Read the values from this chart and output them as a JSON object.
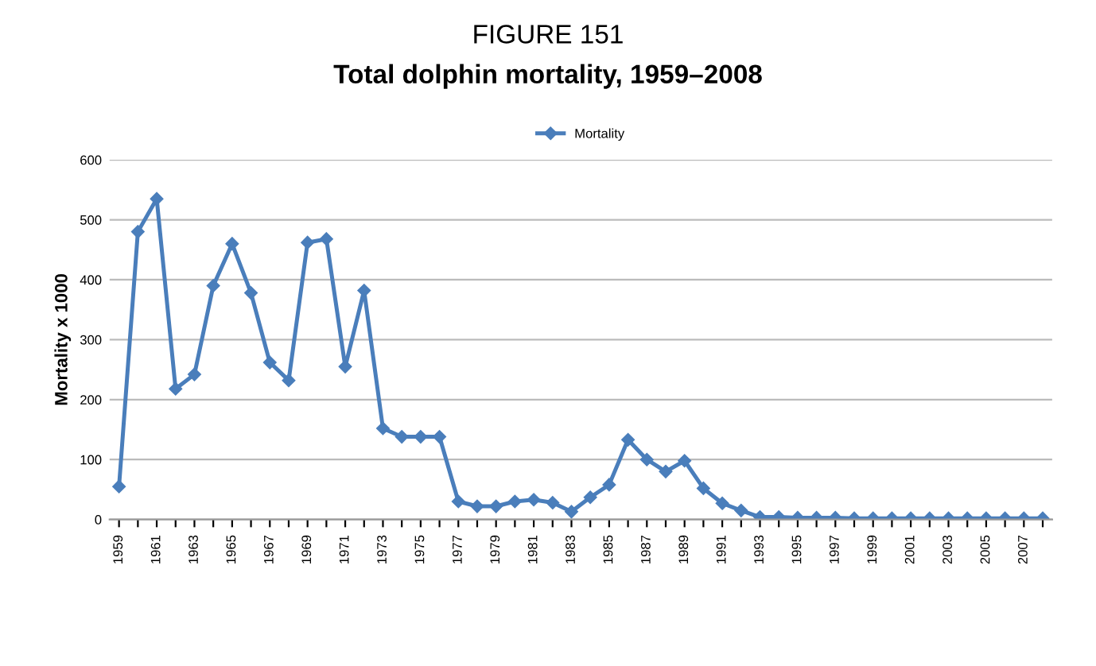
{
  "chart_data": {
    "type": "line",
    "title": "FIGURE 151",
    "subtitle": "Total dolphin mortality, 1959–2008",
    "ylabel": "Mortality x 1000",
    "categories": [
      "1959",
      null,
      "1961",
      null,
      "1963",
      null,
      "1965",
      null,
      "1967",
      null,
      "1969",
      null,
      "1971",
      null,
      "1973",
      null,
      "1975",
      null,
      "1977",
      null,
      "1979",
      null,
      "1981",
      null,
      "1983",
      null,
      "1985",
      null,
      "1987",
      null,
      "1989",
      null,
      "1991",
      null,
      "1993",
      null,
      "1995",
      null,
      "1997",
      null,
      "1999",
      null,
      "2001",
      null,
      "2003",
      null,
      "2005",
      null,
      "2007",
      null
    ],
    "series": [
      {
        "name": "Mortality",
        "color": "#4a7ebb",
        "values": [
          55,
          480,
          535,
          218,
          242,
          390,
          460,
          378,
          262,
          232,
          462,
          468,
          255,
          382,
          152,
          138,
          138,
          138,
          30,
          22,
          22,
          30,
          33,
          28,
          13,
          37,
          58,
          133,
          100,
          80,
          98,
          52,
          27,
          15,
          4,
          4,
          3,
          3,
          3,
          2,
          2,
          2,
          2,
          2,
          2,
          2,
          2,
          2,
          2,
          2
        ]
      }
    ],
    "ylim": [
      0,
      600
    ],
    "yticks": [
      0,
      100,
      200,
      300,
      400,
      500,
      600
    ],
    "grid": "y",
    "legend": "top",
    "marker": "diamond",
    "line_style": "solid"
  }
}
